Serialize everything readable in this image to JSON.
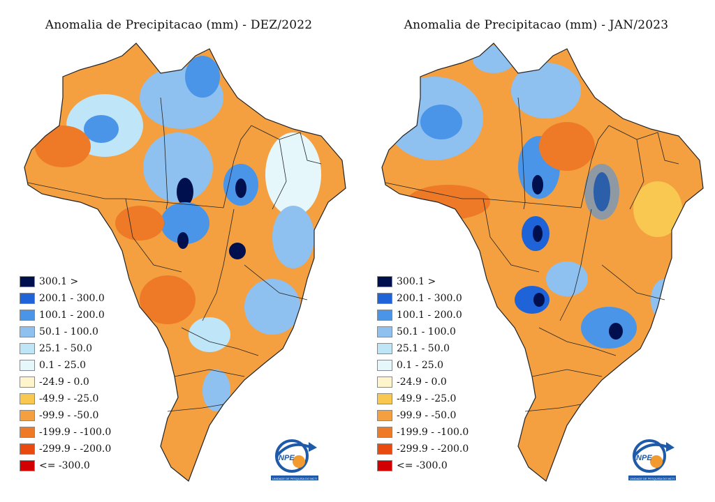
{
  "maps": [
    {
      "title": "Anomalia de Precipitacao (mm) - DEZ/2022"
    },
    {
      "title": "Anomalia de Precipitacao (mm) - JAN/2023"
    }
  ],
  "legend": [
    {
      "label": "300.1 >",
      "color": "#000f4d"
    },
    {
      "label": "200.1 - 300.0",
      "color": "#1e64d8"
    },
    {
      "label": "100.1 - 200.0",
      "color": "#4a95e8"
    },
    {
      "label": "50.1 - 100.0",
      "color": "#8ec0f0"
    },
    {
      "label": "25.1 - 50.0",
      "color": "#bfe6f8"
    },
    {
      "label": "0.1 - 25.0",
      "color": "#e6f7fc"
    },
    {
      "label": "-24.9 - 0.0",
      "color": "#fff5cc"
    },
    {
      "label": "-49.9 - -25.0",
      "color": "#f8c850"
    },
    {
      "label": "-99.9 - -50.0",
      "color": "#f4a040"
    },
    {
      "label": "-199.9 - -100.0",
      "color": "#ee7a28"
    },
    {
      "label": "-299.9 - -200.0",
      "color": "#e84a10"
    },
    {
      "label": "<= -300.0",
      "color": "#d20000"
    }
  ],
  "logo": {
    "name": "INPE",
    "caption": "UNIDADE DE PESQUISA DO MCTI"
  }
}
